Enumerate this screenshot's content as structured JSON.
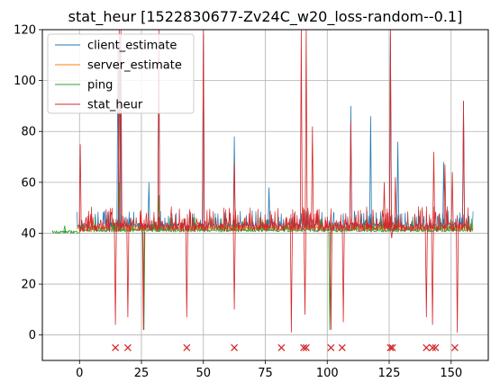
{
  "chart_data": {
    "type": "line",
    "title": "stat_heur [1522830677-Zv24C_w20_loss-random--0.1]",
    "xlabel": "",
    "ylabel": "",
    "xlim": [
      -15,
      165
    ],
    "ylim": [
      -10,
      120
    ],
    "x_ticks": [
      0,
      25,
      50,
      75,
      100,
      125,
      150
    ],
    "y_ticks": [
      0,
      20,
      40,
      60,
      80,
      100,
      120
    ],
    "grid": true,
    "legend": {
      "placement": "top-left",
      "entries": [
        "client_estimate",
        "server_estimate",
        "ping",
        "stat_heur"
      ]
    },
    "colors": {
      "client_estimate": "#1f77b4",
      "server_estimate": "#ff7f0e",
      "ping": "#2ca02c",
      "stat_heur": "#d62728",
      "markers": "#d62728"
    },
    "series": [
      {
        "name": "client_estimate",
        "baseline": 41,
        "x_range": [
          -1,
          159
        ],
        "spikes": [
          {
            "x": 15.5,
            "y": 115
          },
          {
            "x": 16.5,
            "y": 118
          },
          {
            "x": 28,
            "y": 60
          },
          {
            "x": 32,
            "y": 118
          },
          {
            "x": 50,
            "y": 118
          },
          {
            "x": 62.5,
            "y": 78
          },
          {
            "x": 76.5,
            "y": 58
          },
          {
            "x": 109.5,
            "y": 90
          },
          {
            "x": 117.5,
            "y": 86
          },
          {
            "x": 125.5,
            "y": 118
          },
          {
            "x": 128.5,
            "y": 76
          },
          {
            "x": 147,
            "y": 68
          },
          {
            "x": 155,
            "y": 92
          }
        ]
      },
      {
        "name": "server_estimate",
        "baseline": 41,
        "x_range": [
          -1,
          159
        ],
        "spikes": []
      },
      {
        "name": "ping",
        "baseline": 40.5,
        "x_range": [
          -11,
          159
        ],
        "spikes": [
          {
            "x": -6,
            "y": 43
          },
          {
            "x": 16,
            "y": 60
          },
          {
            "x": 26,
            "y": 2
          },
          {
            "x": 32,
            "y": 55
          },
          {
            "x": 101,
            "y": 2
          }
        ]
      },
      {
        "name": "stat_heur",
        "baseline": 42,
        "x_range": [
          0,
          158
        ],
        "spikes": [
          {
            "x": 0.3,
            "y": 75
          },
          {
            "x": 16,
            "y": 120
          },
          {
            "x": 16.7,
            "y": 120
          },
          {
            "x": 32,
            "y": 120
          },
          {
            "x": 50,
            "y": 120
          },
          {
            "x": 62.5,
            "y": 68
          },
          {
            "x": 89.5,
            "y": 120
          },
          {
            "x": 91.5,
            "y": 120
          },
          {
            "x": 94,
            "y": 82
          },
          {
            "x": 109.5,
            "y": 84
          },
          {
            "x": 123,
            "y": 60
          },
          {
            "x": 125.5,
            "y": 120
          },
          {
            "x": 127.5,
            "y": 62
          },
          {
            "x": 143,
            "y": 72
          },
          {
            "x": 147.5,
            "y": 67
          },
          {
            "x": 150.5,
            "y": 64
          },
          {
            "x": 155,
            "y": 92
          }
        ],
        "dips": [
          {
            "x": 14.5,
            "y": 4
          },
          {
            "x": 19.5,
            "y": 7
          },
          {
            "x": 25.8,
            "y": 2
          },
          {
            "x": 43.3,
            "y": 7
          },
          {
            "x": 62.5,
            "y": 10
          },
          {
            "x": 85.5,
            "y": 1
          },
          {
            "x": 91,
            "y": 8
          },
          {
            "x": 101.5,
            "y": 2
          },
          {
            "x": 106.5,
            "y": 5
          },
          {
            "x": 126,
            "y": 38
          },
          {
            "x": 140,
            "y": 7
          },
          {
            "x": 142.5,
            "y": 4
          },
          {
            "x": 152.5,
            "y": 1
          }
        ]
      }
    ],
    "markers": {
      "symbol": "x",
      "y": -5,
      "x": [
        14.5,
        19.5,
        43.3,
        62.5,
        81.5,
        90.5,
        91.5,
        101.5,
        106,
        125.5,
        126.3,
        140,
        142.5,
        143.7,
        151.5
      ]
    }
  }
}
